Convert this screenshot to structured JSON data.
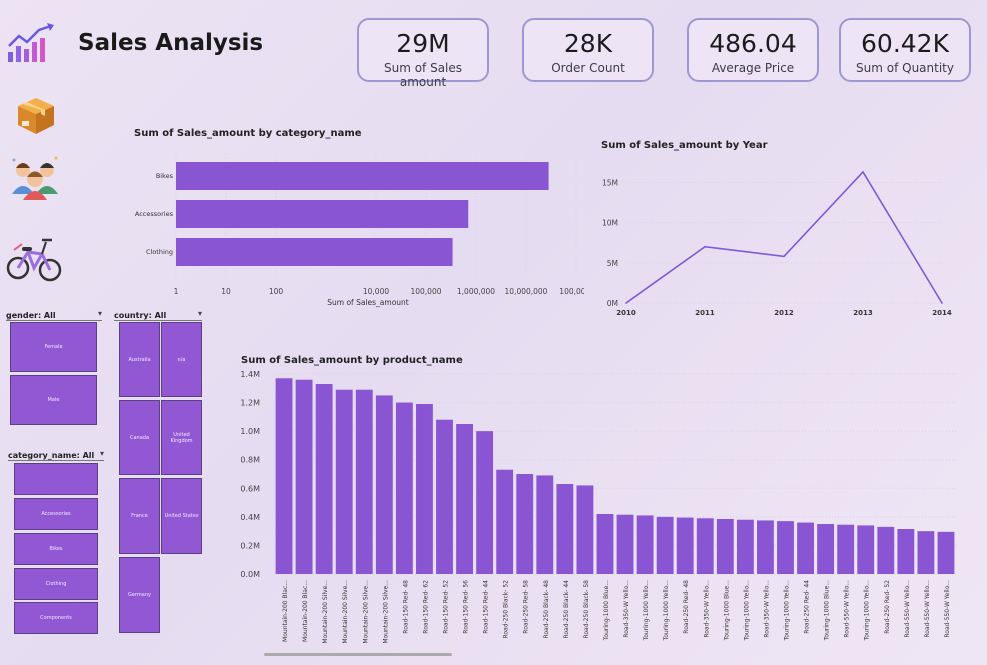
{
  "header": {
    "title": "Sales Analysis"
  },
  "kpis": [
    {
      "value": "29M",
      "label": "Sum of Sales amount"
    },
    {
      "value": "28K",
      "label": "Order Count"
    },
    {
      "value": "486.04",
      "label": "Average Price"
    },
    {
      "value": "60.42K",
      "label": "Sum of Quantity"
    }
  ],
  "nav_icons": [
    "chart-logo-icon",
    "box-icon",
    "people-icon",
    "bicycle-icon"
  ],
  "slicers": {
    "gender": {
      "label": "gender: All",
      "items": [
        "Female",
        "Male"
      ]
    },
    "country": {
      "label": "country: All",
      "items": [
        "Australia",
        "n/a",
        "Canada",
        "United Kingdom",
        "France",
        "United States",
        "Germany"
      ]
    },
    "category": {
      "label": "category_name: All",
      "items": [
        "",
        "Accessories",
        "Bikes",
        "Clothing",
        "Components"
      ]
    }
  },
  "colors": {
    "bar": "#8a55d3",
    "line": "#7a5cd6",
    "kpi_border": "#9d97d4"
  },
  "chart_data": [
    {
      "type": "bar",
      "orientation": "horizontal",
      "title": "Sum of Sales_amount by category_name",
      "categories": [
        "Bikes",
        "Accessories",
        "Clothing"
      ],
      "values": [
        28300000,
        700000,
        340000
      ],
      "xlabel": "Sum of Sales_amount",
      "xscale": "log",
      "xticks": [
        "1",
        "10",
        "100",
        "10,000",
        "100,000",
        "1,000,000",
        "10,000,000",
        "100,00..."
      ],
      "xlim": [
        1,
        100000000
      ]
    },
    {
      "type": "line",
      "title": "Sum of Sales_amount by Year",
      "x": [
        "2010",
        "2011",
        "2012",
        "2013",
        "2014"
      ],
      "values": [
        0,
        7000000,
        5800000,
        16300000,
        0
      ],
      "yticks": [
        "0M",
        "5M",
        "10M",
        "15M"
      ],
      "ylim": [
        0,
        16300000
      ]
    },
    {
      "type": "bar",
      "title": "Sum of Sales_amount by product_name",
      "categories": [
        "Mountain-200 Blac...",
        "Mountain-200 Blac...",
        "Mountain-200 Silve...",
        "Mountain-200 Silve...",
        "Mountain-200 Silve...",
        "Mountain-200 Silve...",
        "Road-150 Red- 48",
        "Road-150 Red- 62",
        "Road-150 Red- 52",
        "Road-150 Red- 56",
        "Road-150 Red- 44",
        "Road-250 Black- 52",
        "Road-250 Red- 58",
        "Road-250 Black- 48",
        "Road-250 Black- 44",
        "Road-250 Black- 58",
        "Touring-1000 Blue...",
        "Road-350-W Yello...",
        "Touring-1000 Yello...",
        "Touring-1000 Yello...",
        "Road-250 Red- 48",
        "Road-350-W Yello...",
        "Touring-1000 Blue...",
        "Touring-1000 Yello...",
        "Road-350-W Yello...",
        "Touring-1000 Yello...",
        "Road-250 Red- 44",
        "Touring-1000 Blue...",
        "Road-550-W Yello...",
        "Touring-1000 Yello...",
        "Road-250 Red- 52",
        "Road-550-W Yello...",
        "Road-550-W Yello...",
        "Road-550-W Yello..."
      ],
      "values": [
        1370000,
        1360000,
        1330000,
        1290000,
        1290000,
        1250000,
        1200000,
        1190000,
        1080000,
        1050000,
        1000000,
        730000,
        700000,
        690000,
        630000,
        620000,
        420000,
        415000,
        410000,
        400000,
        395000,
        390000,
        385000,
        380000,
        375000,
        370000,
        360000,
        350000,
        345000,
        340000,
        330000,
        315000,
        300000,
        295000
      ],
      "yticks": [
        "0.0M",
        "0.2M",
        "0.4M",
        "0.6M",
        "0.8M",
        "1.0M",
        "1.2M",
        "1.4M"
      ],
      "ylim": [
        0,
        1400000
      ]
    }
  ]
}
